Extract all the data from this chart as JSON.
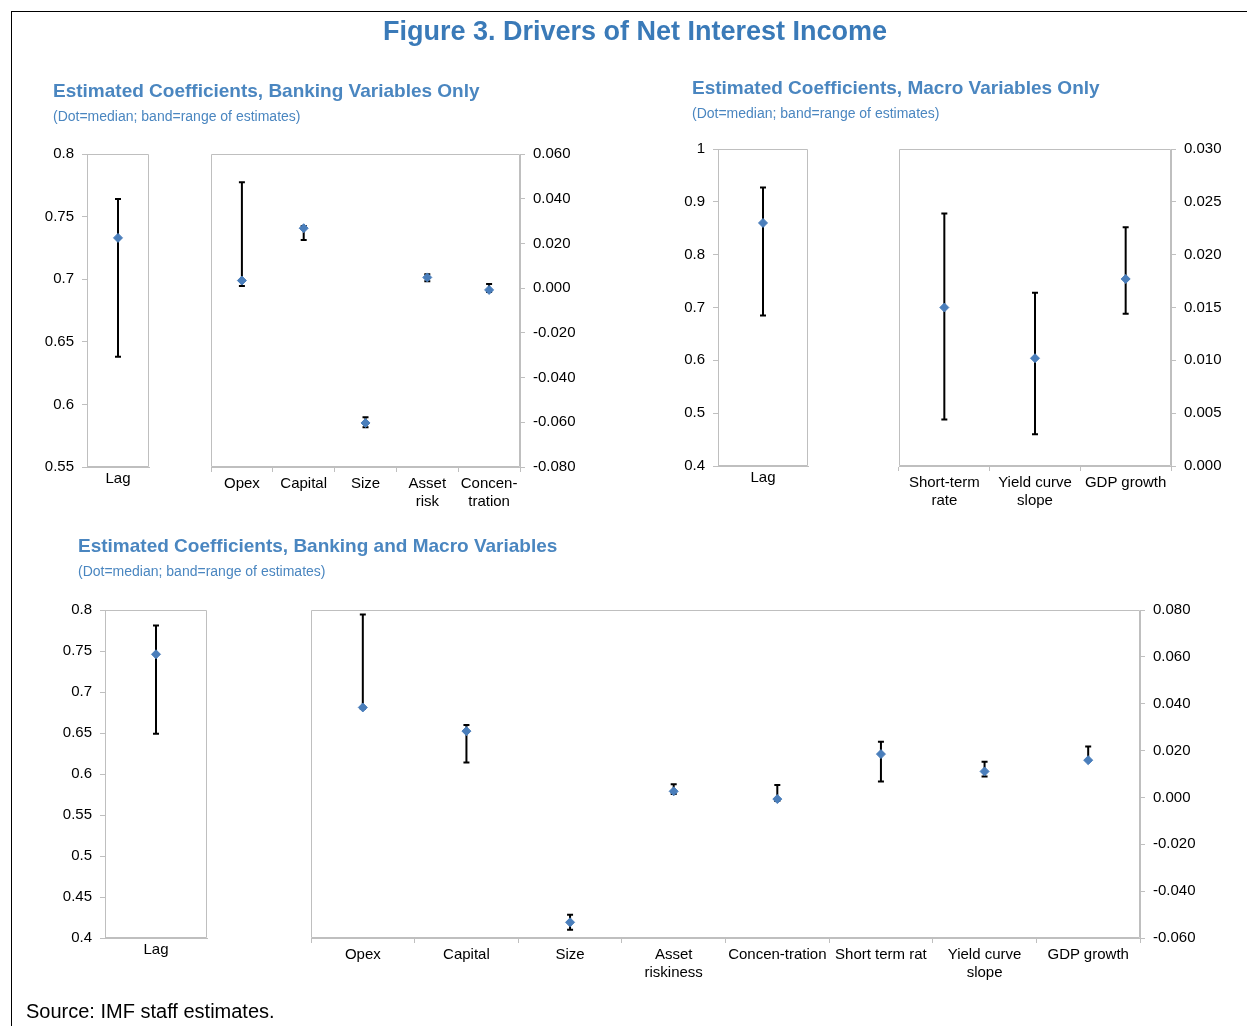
{
  "chart_data": [
    {
      "type": "other",
      "title": "Figure 3. Drivers of Net Interest Income",
      "annotations": [
        "Source: IMF staff estimates."
      ]
    },
    {
      "type": "scatter",
      "title": "Estimated Coefficients, Banking Variables Only",
      "subtitle": "(Dot=median; band=range of estimates)",
      "categories": [
        "Lag"
      ],
      "values": [
        0.733
      ],
      "errors": [
        [
          0.638,
          0.764
        ]
      ],
      "color": "#4a7ebb",
      "ylim": [
        0.55,
        0.8
      ],
      "yticks": [
        0.55,
        0.6,
        0.65,
        0.7,
        0.75,
        0.8
      ],
      "marker": "diamond",
      "grid": false,
      "legend": false
    },
    {
      "type": "scatter",
      "categories": [
        "Opex",
        "Capital",
        "Size",
        "Asset risk",
        "Concen-tration"
      ],
      "series": [
        {
          "axis": "y2",
          "color": "#4a7ebb",
          "values": [
            0.0034,
            0.0268,
            -0.0603,
            0.0048,
            -0.0008
          ],
          "errors": [
            [
              0.001,
              0.0474
            ],
            [
              0.0215,
              0.0278
            ],
            [
              -0.0622,
              -0.0577
            ],
            [
              0.0031,
              0.0062
            ],
            [
              -0.0017,
              0.0018
            ]
          ]
        }
      ],
      "y2lim": [
        -0.08,
        0.06
      ],
      "y2ticks": [
        {
          "value": -0.08,
          "label": "-0.080"
        },
        {
          "value": -0.06,
          "label": "-0.060"
        },
        {
          "value": -0.04,
          "label": "-0.040"
        },
        {
          "value": -0.02,
          "label": "-0.020"
        },
        {
          "value": 0,
          "label": "0.000"
        },
        {
          "value": 0.02,
          "label": "0.020"
        },
        {
          "value": 0.04,
          "label": "0.040"
        },
        {
          "value": 0.06,
          "label": "0.060"
        }
      ],
      "marker": "diamond",
      "grid": false,
      "legend": false
    },
    {
      "type": "scatter",
      "title": "Estimated Coefficients, Macro Variables Only",
      "subtitle": "(Dot=median; band=range of estimates)",
      "categories": [
        "Lag"
      ],
      "values": [
        0.86
      ],
      "errors": [
        [
          0.685,
          0.927
        ]
      ],
      "color": "#4a7ebb",
      "ylim": [
        0.4,
        1
      ],
      "yticks": [
        0.4,
        0.5,
        0.6,
        0.7,
        0.8,
        0.9,
        1
      ],
      "marker": "diamond",
      "grid": false,
      "legend": false
    },
    {
      "type": "scatter",
      "categories": [
        "Short-term rate",
        "Yield curve slope",
        "GDP growth"
      ],
      "series": [
        {
          "axis": "y2",
          "color": "#4a7ebb",
          "values": [
            0.015,
            0.0102,
            0.0177
          ],
          "errors": [
            [
              0.0044,
              0.0239
            ],
            [
              0.003,
              0.0164
            ],
            [
              0.0144,
              0.0226
            ]
          ]
        }
      ],
      "y2lim": [
        0,
        0.03
      ],
      "y2ticks": [
        {
          "value": 0,
          "label": "0.000"
        },
        {
          "value": 0.005,
          "label": "0.005"
        },
        {
          "value": 0.01,
          "label": "0.010"
        },
        {
          "value": 0.015,
          "label": "0.015"
        },
        {
          "value": 0.02,
          "label": "0.020"
        },
        {
          "value": 0.025,
          "label": "0.025"
        },
        {
          "value": 0.03,
          "label": "0.030"
        }
      ],
      "marker": "diamond",
      "grid": false,
      "legend": false
    },
    {
      "type": "scatter",
      "title": "Estimated Coefficients, Banking and Macro Variables",
      "subtitle": "(Dot=median; band=range of estimates)",
      "categories": [
        "Lag"
      ],
      "values": [
        0.746
      ],
      "errors": [
        [
          0.649,
          0.781
        ]
      ],
      "color": "#4a7ebb",
      "ylim": [
        0.4,
        0.8
      ],
      "yticks": [
        0.4,
        0.45,
        0.5,
        0.55,
        0.6,
        0.65,
        0.7,
        0.75,
        0.8
      ],
      "marker": "diamond",
      "grid": false,
      "legend": false
    },
    {
      "type": "scatter",
      "categories": [
        "Opex",
        "Capital",
        "Size",
        "Asset  riskiness",
        "Concen-tration",
        "Short term rat",
        "Yield curve slope",
        "GDP growth"
      ],
      "series": [
        {
          "axis": "y2",
          "color": "#4a7ebb",
          "values": [
            0.0384,
            0.0283,
            -0.0533,
            0.0026,
            -0.0007,
            0.0185,
            0.0111,
            0.0159
          ],
          "errors": [
            [
              0.0378,
              0.0781
            ],
            [
              0.0149,
              0.0309
            ],
            [
              -0.0565,
              -0.0501
            ],
            [
              0.0015,
              0.0056
            ],
            [
              -0.0015,
              0.0053
            ],
            [
              0.0068,
              0.0238
            ],
            [
              0.0089,
              0.0152
            ],
            [
              0.0159,
              0.0217
            ]
          ]
        }
      ],
      "y2lim": [
        -0.06,
        0.08
      ],
      "y2ticks": [
        {
          "value": -0.06,
          "label": "-0.060"
        },
        {
          "value": -0.04,
          "label": "-0.040"
        },
        {
          "value": -0.02,
          "label": "-0.020"
        },
        {
          "value": 0,
          "label": "0.000"
        },
        {
          "value": 0.02,
          "label": "0.020"
        },
        {
          "value": 0.04,
          "label": "0.040"
        },
        {
          "value": 0.06,
          "label": "0.060"
        },
        {
          "value": 0.08,
          "label": "0.080"
        }
      ],
      "marker": "diamond",
      "grid": false,
      "legend": false
    }
  ]
}
